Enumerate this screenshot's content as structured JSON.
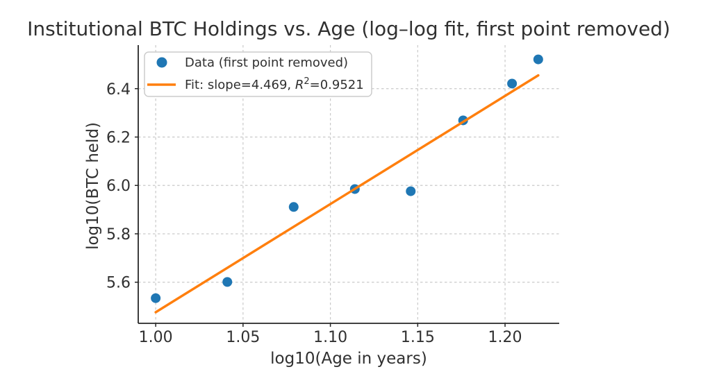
{
  "figure": {
    "background": "#ffffff",
    "text_color": "#303030",
    "axis_color": "#262626"
  },
  "chart_data": {
    "type": "scatter",
    "title": "Institutional BTC Holdings vs. Age (log–log fit, first point removed)",
    "xlabel": "log10(Age in years)",
    "ylabel": "log10(BTC held)",
    "xlim": [
      0.99,
      1.231
    ],
    "ylim": [
      5.43,
      6.58
    ],
    "grid": true,
    "grid_color": "#c9c9c9",
    "xticks": {
      "values": [
        1.0,
        1.05,
        1.1,
        1.15,
        1.2
      ],
      "labels": [
        "1.00",
        "1.05",
        "1.10",
        "1.15",
        "1.20"
      ]
    },
    "yticks": {
      "values": [
        5.6,
        5.8,
        6.0,
        6.2,
        6.4
      ],
      "labels": [
        "5.6",
        "5.8",
        "6.0",
        "6.2",
        "6.4"
      ]
    },
    "series": [
      {
        "name": "Data (first point removed)",
        "type": "scatter",
        "marker": "circle",
        "color": "#1f77b4",
        "points": [
          [
            1.0,
            5.534
          ],
          [
            1.041,
            5.601
          ],
          [
            1.079,
            5.911
          ],
          [
            1.114,
            5.985
          ],
          [
            1.146,
            5.976
          ],
          [
            1.176,
            6.269
          ],
          [
            1.204,
            6.421
          ],
          [
            1.219,
            6.521
          ]
        ]
      },
      {
        "name": "Fit: slope=4.469, R²=0.9521",
        "type": "line",
        "color": "#ff7f0e",
        "slope": 4.469,
        "r_squared": 0.9521,
        "x": [
          1.0,
          1.219
        ],
        "y": [
          5.476,
          6.455
        ]
      }
    ],
    "legend": {
      "position": "upper left",
      "data_label": "Data (first point removed)",
      "fit_label": {
        "prefix": "Fit: slope=4.469, ",
        "r": "R",
        "sup": "2",
        "suffix": "=0.9521"
      }
    }
  }
}
